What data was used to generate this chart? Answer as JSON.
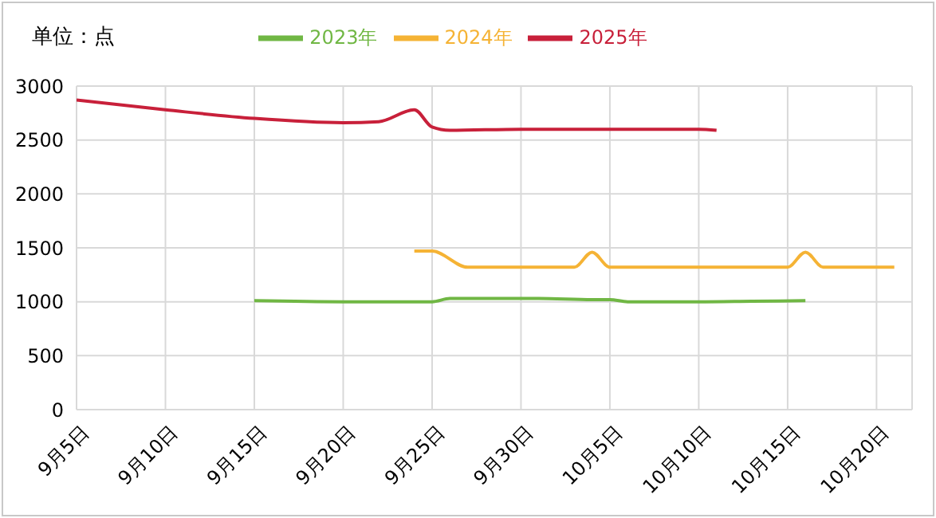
{
  "chart_data": {
    "type": "line",
    "ylabel": "单位：点",
    "legend": "top",
    "grid": true,
    "marker": "none",
    "line_style": "solid",
    "xlim": [
      "--09-05",
      "--10-22"
    ],
    "xticks": [
      {
        "value": "--09-05",
        "label": "9月5日"
      },
      {
        "value": "--09-10",
        "label": "9月10日"
      },
      {
        "value": "--09-15",
        "label": "9月15日"
      },
      {
        "value": "--09-20",
        "label": "9月20日"
      },
      {
        "value": "--09-25",
        "label": "9月25日"
      },
      {
        "value": "--09-30",
        "label": "9月30日"
      },
      {
        "value": "--10-05",
        "label": "10月5日"
      },
      {
        "value": "--10-10",
        "label": "10月10日"
      },
      {
        "value": "--10-15",
        "label": "10月15日"
      },
      {
        "value": "--10-20",
        "label": "10月20日"
      }
    ],
    "ylim": [
      0,
      3000
    ],
    "yticks": [
      0,
      500,
      1000,
      1500,
      2000,
      2500,
      3000
    ],
    "series": [
      {
        "name": "2023年",
        "color": "#70b744",
        "x": [
          "--09-15",
          "--09-20",
          "--09-25",
          "--09-26",
          "--09-28",
          "--10-01",
          "--10-04",
          "--10-05",
          "--10-06",
          "--10-10",
          "--10-13",
          "--10-16"
        ],
        "values": [
          1010,
          1000,
          1000,
          1030,
          1030,
          1030,
          1020,
          1020,
          1000,
          1000,
          1005,
          1010
        ]
      },
      {
        "name": "2024年",
        "color": "#f5b335",
        "x": [
          "--09-24",
          "--09-25",
          "--09-27",
          "--09-30",
          "--10-03",
          "--10-04",
          "--10-05",
          "--10-07",
          "--10-10",
          "--10-13",
          "--10-15",
          "--10-16",
          "--10-17",
          "--10-19",
          "--10-21"
        ],
        "values": [
          1470,
          1470,
          1320,
          1320,
          1320,
          1460,
          1320,
          1320,
          1320,
          1320,
          1320,
          1460,
          1320,
          1320,
          1320
        ]
      },
      {
        "name": "2025年",
        "color": "#c8203a",
        "x": [
          "--09-05",
          "--09-10",
          "--09-15",
          "--09-20",
          "--09-22",
          "--09-24",
          "--09-25",
          "--09-26",
          "--09-30",
          "--10-05",
          "--10-10",
          "--10-11"
        ],
        "values": [
          2870,
          2780,
          2700,
          2660,
          2670,
          2780,
          2620,
          2590,
          2600,
          2600,
          2600,
          2590
        ]
      }
    ]
  }
}
